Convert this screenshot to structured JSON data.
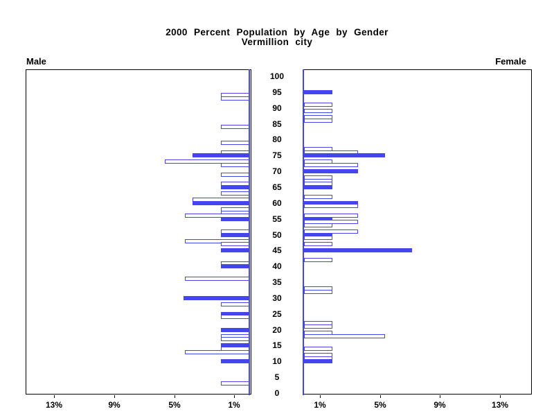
{
  "title": {
    "line1": "2000 Percent Population by Age by Gender",
    "line2": "Vermillion city"
  },
  "panels": {
    "left_label": "Male",
    "right_label": "Female"
  },
  "age_axis": {
    "tick_labels": [
      0,
      5,
      10,
      15,
      20,
      25,
      30,
      35,
      40,
      45,
      50,
      55,
      60,
      65,
      70,
      75,
      80,
      85,
      90,
      95,
      100
    ]
  },
  "percent_axis": {
    "tick_values": [
      1,
      5,
      9,
      13
    ],
    "unit": "%",
    "left_display_order": [
      "13%",
      "9%",
      "5%",
      "1%"
    ],
    "right_display_order": [
      "1%",
      "5%",
      "9%",
      "13%"
    ]
  },
  "colors": {
    "bar_blue": "#4545ee",
    "hollow_fill": "#ffffff",
    "frame": "#000000",
    "text": "#000000",
    "background": "#ffffff"
  },
  "chart_data": {
    "type": "bar",
    "subtype": "population-pyramid",
    "title": "2000 Percent Population by Age by Gender",
    "subtitle": "Vermillion city",
    "x_unit": "percent",
    "x_tick_values_each_side": [
      1,
      5,
      9,
      13
    ],
    "xlim_each_side": [
      0,
      15
    ],
    "age_ticks": [
      0,
      5,
      10,
      15,
      20,
      25,
      30,
      35,
      40,
      45,
      50,
      55,
      60,
      65,
      70,
      75,
      80,
      85,
      90,
      95,
      100
    ],
    "age_range": [
      0,
      100
    ],
    "grid": false,
    "fill_styles": [
      "solid",
      "outline"
    ],
    "series": [
      {
        "name": "Male",
        "side": "left",
        "bars": [
          {
            "age": 94,
            "pct": 1.9,
            "fill": "outline"
          },
          {
            "age": 93,
            "pct": 1.9,
            "fill": "outline"
          },
          {
            "age": 84,
            "pct": 1.9,
            "fill": "outline"
          },
          {
            "age": 79,
            "pct": 1.9,
            "fill": "outline"
          },
          {
            "age": 76,
            "pct": 1.9,
            "fill": "outline"
          },
          {
            "age": 75,
            "pct": 3.8,
            "fill": "solid"
          },
          {
            "age": 73,
            "pct": 5.6,
            "fill": "outline"
          },
          {
            "age": 72,
            "pct": 1.9,
            "fill": "outline"
          },
          {
            "age": 69,
            "pct": 1.9,
            "fill": "outline"
          },
          {
            "age": 66,
            "pct": 1.9,
            "fill": "outline"
          },
          {
            "age": 65,
            "pct": 1.9,
            "fill": "solid"
          },
          {
            "age": 63,
            "pct": 1.9,
            "fill": "outline"
          },
          {
            "age": 61,
            "pct": 3.8,
            "fill": "outline"
          },
          {
            "age": 60,
            "pct": 3.8,
            "fill": "solid"
          },
          {
            "age": 58,
            "pct": 1.9,
            "fill": "outline"
          },
          {
            "age": 57,
            "pct": 1.9,
            "fill": "outline"
          },
          {
            "age": 56,
            "pct": 4.3,
            "fill": "outline"
          },
          {
            "age": 55,
            "pct": 1.9,
            "fill": "solid"
          },
          {
            "age": 51,
            "pct": 1.9,
            "fill": "outline"
          },
          {
            "age": 50,
            "pct": 1.9,
            "fill": "solid"
          },
          {
            "age": 48,
            "pct": 4.3,
            "fill": "outline"
          },
          {
            "age": 47,
            "pct": 1.9,
            "fill": "outline"
          },
          {
            "age": 45,
            "pct": 1.9,
            "fill": "solid"
          },
          {
            "age": 41,
            "pct": 1.9,
            "fill": "outline"
          },
          {
            "age": 40,
            "pct": 1.9,
            "fill": "solid"
          },
          {
            "age": 36,
            "pct": 4.3,
            "fill": "outline"
          },
          {
            "age": 30,
            "pct": 4.4,
            "fill": "solid"
          },
          {
            "age": 28,
            "pct": 1.9,
            "fill": "outline"
          },
          {
            "age": 25,
            "pct": 1.9,
            "fill": "solid"
          },
          {
            "age": 24,
            "pct": 1.9,
            "fill": "outline"
          },
          {
            "age": 20,
            "pct": 1.9,
            "fill": "solid"
          },
          {
            "age": 18,
            "pct": 1.9,
            "fill": "outline"
          },
          {
            "age": 17,
            "pct": 1.9,
            "fill": "outline"
          },
          {
            "age": 15,
            "pct": 1.9,
            "fill": "solid"
          },
          {
            "age": 14,
            "pct": 1.9,
            "fill": "outline"
          },
          {
            "age": 13,
            "pct": 4.3,
            "fill": "outline"
          },
          {
            "age": 10,
            "pct": 1.9,
            "fill": "solid"
          },
          {
            "age": 3,
            "pct": 1.9,
            "fill": "outline"
          }
        ]
      },
      {
        "name": "Female",
        "side": "right",
        "bars": [
          {
            "age": 95,
            "pct": 1.9,
            "fill": "solid"
          },
          {
            "age": 91,
            "pct": 1.9,
            "fill": "outline"
          },
          {
            "age": 89,
            "pct": 1.9,
            "fill": "outline"
          },
          {
            "age": 87,
            "pct": 1.9,
            "fill": "outline"
          },
          {
            "age": 86,
            "pct": 1.9,
            "fill": "outline"
          },
          {
            "age": 77,
            "pct": 1.9,
            "fill": "outline"
          },
          {
            "age": 76,
            "pct": 3.6,
            "fill": "outline"
          },
          {
            "age": 75,
            "pct": 5.4,
            "fill": "solid"
          },
          {
            "age": 73,
            "pct": 1.9,
            "fill": "outline"
          },
          {
            "age": 72,
            "pct": 3.6,
            "fill": "outline"
          },
          {
            "age": 70,
            "pct": 3.6,
            "fill": "solid"
          },
          {
            "age": 68,
            "pct": 1.9,
            "fill": "outline"
          },
          {
            "age": 67,
            "pct": 1.9,
            "fill": "outline"
          },
          {
            "age": 66,
            "pct": 1.9,
            "fill": "outline"
          },
          {
            "age": 65,
            "pct": 1.9,
            "fill": "solid"
          },
          {
            "age": 62,
            "pct": 1.9,
            "fill": "outline"
          },
          {
            "age": 60,
            "pct": 3.6,
            "fill": "solid"
          },
          {
            "age": 59,
            "pct": 3.6,
            "fill": "outline"
          },
          {
            "age": 56,
            "pct": 3.6,
            "fill": "outline"
          },
          {
            "age": 55,
            "pct": 1.9,
            "fill": "solid"
          },
          {
            "age": 54,
            "pct": 3.6,
            "fill": "outline"
          },
          {
            "age": 53,
            "pct": 1.9,
            "fill": "outline"
          },
          {
            "age": 51,
            "pct": 3.6,
            "fill": "outline"
          },
          {
            "age": 50,
            "pct": 1.9,
            "fill": "solid"
          },
          {
            "age": 49,
            "pct": 1.9,
            "fill": "outline"
          },
          {
            "age": 47,
            "pct": 1.9,
            "fill": "outline"
          },
          {
            "age": 45,
            "pct": 7.2,
            "fill": "solid"
          },
          {
            "age": 42,
            "pct": 1.9,
            "fill": "outline"
          },
          {
            "age": 33,
            "pct": 1.9,
            "fill": "outline"
          },
          {
            "age": 32,
            "pct": 1.9,
            "fill": "outline"
          },
          {
            "age": 22,
            "pct": 1.9,
            "fill": "outline"
          },
          {
            "age": 21,
            "pct": 1.9,
            "fill": "outline"
          },
          {
            "age": 19,
            "pct": 1.9,
            "fill": "outline"
          },
          {
            "age": 18,
            "pct": 5.4,
            "fill": "outline"
          },
          {
            "age": 14,
            "pct": 1.9,
            "fill": "outline"
          },
          {
            "age": 12,
            "pct": 1.9,
            "fill": "outline"
          },
          {
            "age": 11,
            "pct": 1.9,
            "fill": "outline"
          },
          {
            "age": 10,
            "pct": 1.9,
            "fill": "solid"
          }
        ]
      }
    ]
  }
}
